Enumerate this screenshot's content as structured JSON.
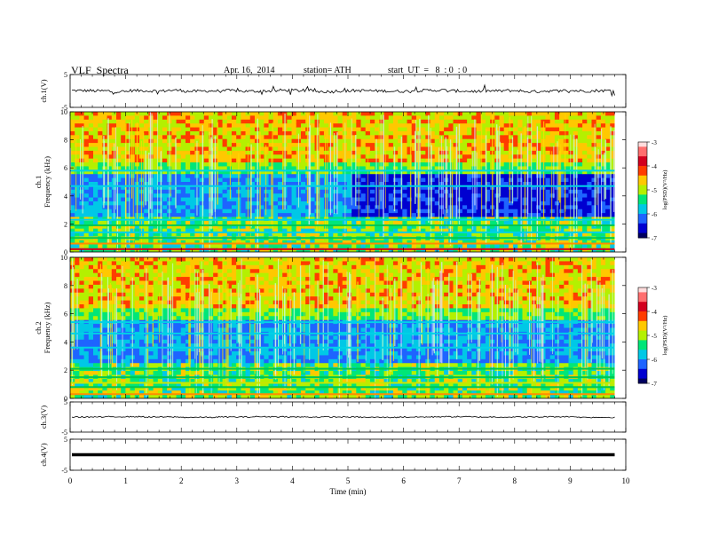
{
  "header": {
    "title": "VLF  Spectra",
    "date": "Apr. 16,  2014",
    "station": "station= ATH",
    "start": "start  UT  =   8  : 0  : 0"
  },
  "colors": {
    "background": "#ffffff",
    "axes": "#000000",
    "spectrogram_scale": [
      "#000060",
      "#0000d0",
      "#1e64ff",
      "#00c8e6",
      "#00e678",
      "#b4f000",
      "#ffc800",
      "#ff3c00",
      "#d2001e",
      "#ff6e6e",
      "#ffdcdc"
    ]
  },
  "chart_data": [
    {
      "type": "line",
      "ylabel": "ch.1(V)",
      "ylim": [
        -5,
        5
      ],
      "yticks": [
        "5",
        "-5"
      ],
      "series": [
        {
          "values": [
            0.1,
            0.0,
            -0.2,
            0.1,
            0.0,
            0.2,
            -0.1,
            0.0,
            0.1,
            -0.1,
            0.0,
            0.2,
            0.1,
            -0.2,
            0.0,
            0.1,
            0.0,
            -0.1,
            0.1,
            0.2,
            0.0,
            -0.1,
            0.0,
            0.1,
            -0.2,
            0.0,
            0.1,
            0.0,
            0.1,
            -0.1
          ]
        }
      ]
    },
    {
      "type": "heatmap",
      "ylabel": "ch.1\nFrequency  (kHz)",
      "ylim": [
        0,
        10
      ],
      "yticks": [
        "0",
        "2",
        "4",
        "6",
        "8",
        "10"
      ],
      "colorbar": {
        "label": "log(PSD)(V²/Hz)",
        "range": [
          -7,
          -3
        ],
        "ticks": [
          "-3",
          "-4",
          "-5",
          "-6",
          "-7"
        ]
      },
      "bands_khz": [
        [
          0.2,
          "red"
        ],
        [
          0.6,
          "orange"
        ],
        [
          1.0,
          "green"
        ],
        [
          1.4,
          "cyan"
        ],
        [
          1.9,
          "green"
        ],
        [
          2.3,
          "cyan"
        ],
        [
          4.7,
          "cyan"
        ],
        [
          5.8,
          "cyan"
        ]
      ]
    },
    {
      "type": "heatmap",
      "ylabel": "ch.2\nFrequency  (kHz)",
      "ylim": [
        0,
        10
      ],
      "yticks": [
        "0",
        "2",
        "4",
        "6",
        "8",
        "10"
      ],
      "colorbar": {
        "label": "log(PSD)(V²/Hz)",
        "range": [
          -7,
          -3
        ],
        "ticks": [
          "-3",
          "-4",
          "-5",
          "-6",
          "-7"
        ]
      },
      "bands_khz": [
        [
          0.3,
          "orange"
        ],
        [
          0.8,
          "green"
        ],
        [
          1.1,
          "yellow"
        ],
        [
          1.5,
          "green"
        ],
        [
          2.1,
          "green"
        ],
        [
          3.6,
          "cyan"
        ],
        [
          4.6,
          "cyan"
        ],
        [
          5.4,
          "cyan"
        ]
      ]
    },
    {
      "type": "line",
      "ylabel": "ch.3(V)",
      "ylim": [
        -5,
        5
      ],
      "yticks": [
        "5",
        "-5"
      ],
      "series": [
        {
          "values": [
            0.0,
            0.1,
            0.0,
            -0.1,
            0.0,
            0.1,
            0.0,
            0.0,
            -0.1,
            0.0,
            0.1,
            0.0,
            0.0,
            0.1,
            -0.1,
            0.0
          ]
        }
      ]
    },
    {
      "type": "line",
      "ylabel": "ch.4(V)",
      "ylim": [
        -5,
        5
      ],
      "yticks": [
        "5",
        "-5"
      ],
      "series": [
        {
          "values": [
            0,
            0,
            0,
            0,
            0,
            0,
            0,
            0,
            0,
            0,
            0,
            0,
            0,
            0,
            0,
            0
          ]
        }
      ]
    }
  ],
  "x_axis": {
    "xlabel": "Time  (min)",
    "xlim": [
      0,
      10
    ],
    "data_end": 9.8,
    "ticks": [
      "0",
      "1",
      "2",
      "3",
      "4",
      "5",
      "6",
      "7",
      "8",
      "9",
      "10"
    ]
  }
}
